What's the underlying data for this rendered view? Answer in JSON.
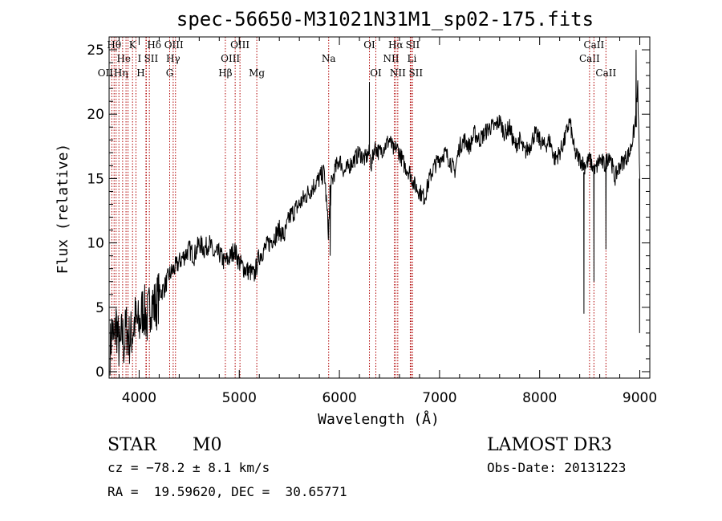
{
  "chart_data": {
    "type": "line",
    "title": "spec-56650-M31021N31M1_sp02-175.fits",
    "xlabel": "Wavelength (Å)",
    "ylabel": "Flux (relative)",
    "xlim": [
      3700,
      9100
    ],
    "ylim": [
      -0.5,
      26
    ],
    "xticks": [
      4000,
      5000,
      6000,
      7000,
      8000,
      9000
    ],
    "yticks": [
      0,
      5,
      10,
      15,
      20,
      25
    ],
    "grid": false,
    "series_color": "#000000",
    "line_marker_color": "#b00000",
    "series": [
      {
        "x": [
          3710,
          3730,
          3750,
          3770,
          3790,
          3810,
          3830,
          3850,
          3870,
          3900,
          3930,
          3960,
          4000,
          4040,
          4080,
          4120,
          4160,
          4200,
          4250,
          4300,
          4350,
          4400,
          4450,
          4500,
          4550,
          4600,
          4650,
          4700,
          4750,
          4800,
          4850,
          4900,
          4950,
          5000,
          5050,
          5100,
          5150,
          5200,
          5250,
          5300,
          5350,
          5400,
          5450,
          5500,
          5550,
          5600,
          5650,
          5700,
          5750,
          5800,
          5850,
          5890,
          5920,
          5950,
          6000,
          6050,
          6100,
          6150,
          6200,
          6250,
          6300,
          6320,
          6350,
          6400,
          6450,
          6500,
          6550,
          6565,
          6600,
          6650,
          6700,
          6750,
          6800,
          6850,
          6900,
          6950,
          7000,
          7050,
          7100,
          7150,
          7200,
          7250,
          7300,
          7350,
          7400,
          7450,
          7500,
          7550,
          7600,
          7650,
          7700,
          7750,
          7800,
          7850,
          7900,
          7950,
          8000,
          8050,
          8100,
          8150,
          8200,
          8250,
          8300,
          8350,
          8400,
          8450,
          8500,
          8550,
          8600,
          8650,
          8700,
          8750,
          8800,
          8850,
          8900,
          8950,
          8980,
          9000
        ],
        "y": [
          1.5,
          3.5,
          2.0,
          4.0,
          2.5,
          1.5,
          3.0,
          2.0,
          3.5,
          2.5,
          3.0,
          4.0,
          3.5,
          5.0,
          4.0,
          5.5,
          5.0,
          6.0,
          6.5,
          7.5,
          8.0,
          8.5,
          9.0,
          9.5,
          9.0,
          10.0,
          9.5,
          10.0,
          9.0,
          9.2,
          8.5,
          8.8,
          9.5,
          8.5,
          8.0,
          7.8,
          7.5,
          9.0,
          9.5,
          10.0,
          10.5,
          11.0,
          10.5,
          12.0,
          12.5,
          13.0,
          13.5,
          14.0,
          14.5,
          15.0,
          15.5,
          11.0,
          14.5,
          15.5,
          16.5,
          15.5,
          16.0,
          16.5,
          17.0,
          16.5,
          17.0,
          16.0,
          17.5,
          17.0,
          17.5,
          18.0,
          17.0,
          17.5,
          17.0,
          16.0,
          15.5,
          14.5,
          14.0,
          13.5,
          15.0,
          16.0,
          16.5,
          17.0,
          16.5,
          15.5,
          17.5,
          18.0,
          17.5,
          18.5,
          18.0,
          18.5,
          19.0,
          19.0,
          19.5,
          18.5,
          19.0,
          17.5,
          18.0,
          17.0,
          17.5,
          18.5,
          18.0,
          17.5,
          18.0,
          16.5,
          17.0,
          18.0,
          19.5,
          17.0,
          16.5,
          16.0,
          16.5,
          15.5,
          16.5,
          16.0,
          17.0,
          15.0,
          16.0,
          16.5,
          17.0,
          19.0,
          22.0,
          15.0
        ]
      }
    ],
    "spikes": [
      {
        "x": [
          6299,
          6300,
          6301
        ],
        "y": [
          17.0,
          22.5,
          17.0
        ]
      },
      {
        "x": [
          8440,
          8442,
          8444
        ],
        "y": [
          15.5,
          4.5,
          15.5
        ]
      },
      {
        "x": [
          8540,
          8542,
          8544
        ],
        "y": [
          16.0,
          7.0,
          16.0
        ]
      },
      {
        "x": [
          8660,
          8662,
          8664
        ],
        "y": [
          16.0,
          9.5,
          16.0
        ]
      },
      {
        "x": [
          5905,
          5908,
          5911
        ],
        "y": [
          14.5,
          9.0,
          14.5
        ]
      },
      {
        "x": [
          8960,
          8963,
          8966
        ],
        "y": [
          19.0,
          25.0,
          19.0
        ]
      },
      {
        "x": [
          8996,
          8998,
          9000
        ],
        "y": [
          15.0,
          3.0,
          15.0
        ]
      }
    ],
    "line_markers": [
      {
        "x": 3727,
        "label": "OII",
        "row": 2,
        "dx": -8
      },
      {
        "x": 3750,
        "label": "Hθ",
        "row": 0,
        "dx": 0
      },
      {
        "x": 3770,
        "label": "Hη",
        "row": 2,
        "dx": 6
      },
      {
        "x": 3798,
        "label": "He",
        "row": 1,
        "dx": 6
      },
      {
        "x": 3835,
        "label": "",
        "row": -1,
        "dx": 0
      },
      {
        "x": 3869,
        "label": "",
        "row": -1,
        "dx": 0
      },
      {
        "x": 3889,
        "label": "",
        "row": -1,
        "dx": 0
      },
      {
        "x": 3934,
        "label": "K",
        "row": 0,
        "dx": 0
      },
      {
        "x": 3968,
        "label": "H",
        "row": 2,
        "dx": 6
      },
      {
        "x": 4068,
        "label": "I",
        "row": 1,
        "dx": -8
      },
      {
        "x": 4072,
        "label": "SII",
        "row": 1,
        "dx": 6
      },
      {
        "x": 4102,
        "label": "Hδ",
        "row": 0,
        "dx": 6
      },
      {
        "x": 4305,
        "label": "G",
        "row": 2,
        "dx": 0
      },
      {
        "x": 4340,
        "label": "Hγ",
        "row": 1,
        "dx": 0
      },
      {
        "x": 4363,
        "label": "OIII",
        "row": 0,
        "dx": -2
      },
      {
        "x": 4861,
        "label": "Hβ",
        "row": 2,
        "dx": 0
      },
      {
        "x": 4959,
        "label": "OIII",
        "row": 1,
        "dx": -6
      },
      {
        "x": 5007,
        "label": "OIII",
        "row": 0,
        "dx": 0
      },
      {
        "x": 5175,
        "label": "Mg",
        "row": 2,
        "dx": 0
      },
      {
        "x": 5893,
        "label": "Na",
        "row": 1,
        "dx": 0
      },
      {
        "x": 6300,
        "label": "OI",
        "row": 0,
        "dx": 0
      },
      {
        "x": 6364,
        "label": "OI",
        "row": 2,
        "dx": 0
      },
      {
        "x": 6548,
        "label": "NII",
        "row": 1,
        "dx": -4
      },
      {
        "x": 6563,
        "label": "Hα",
        "row": 0,
        "dx": 0
      },
      {
        "x": 6583,
        "label": "NII",
        "row": 2,
        "dx": 0
      },
      {
        "x": 6708,
        "label": "Li",
        "row": 1,
        "dx": 2
      },
      {
        "x": 6716,
        "label": "SII",
        "row": 0,
        "dx": 2
      },
      {
        "x": 6731,
        "label": "SII",
        "row": 2,
        "dx": 4
      },
      {
        "x": 8498,
        "label": "CaII",
        "row": 1,
        "dx": 0
      },
      {
        "x": 8542,
        "label": "CaII",
        "row": 0,
        "dx": 0
      },
      {
        "x": 8662,
        "label": "CaII",
        "row": 2,
        "dx": 0
      }
    ]
  },
  "info": {
    "class": "STAR",
    "subclass": "M0",
    "survey": "LAMOST DR3",
    "cz": "cz = −78.2 ± 8.1 km/s",
    "obs_date": "Obs-Date: 20131223",
    "radec": "RA =  19.59620, DEC =  30.65771"
  }
}
